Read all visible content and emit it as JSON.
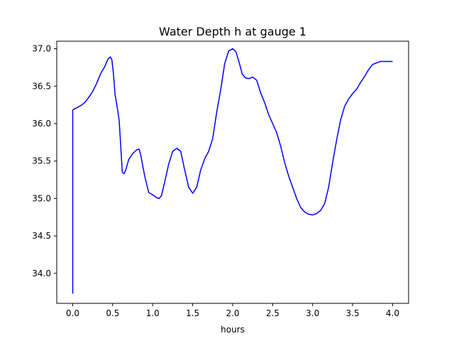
{
  "chart_data": {
    "type": "line",
    "title": "Water Depth h at gauge 1",
    "xlabel": "hours",
    "ylabel": "",
    "xlim": [
      -0.2,
      4.2
    ],
    "ylim": [
      33.6,
      37.1
    ],
    "xticks": [
      0.0,
      0.5,
      1.0,
      1.5,
      2.0,
      2.5,
      3.0,
      3.5,
      4.0
    ],
    "xtick_labels": [
      "0.0",
      "0.5",
      "1.0",
      "1.5",
      "2.0",
      "2.5",
      "3.0",
      "3.5",
      "4.0"
    ],
    "yticks": [
      34.0,
      34.5,
      35.0,
      35.5,
      36.0,
      36.5,
      37.0
    ],
    "ytick_labels": [
      "34.0",
      "34.5",
      "35.0",
      "35.5",
      "36.0",
      "36.5",
      "37.0"
    ],
    "grid": false,
    "line_color": "#0000ff",
    "series": [
      {
        "x": [
          0.0,
          0.0,
          0.01,
          0.05,
          0.1,
          0.15,
          0.2,
          0.25,
          0.3,
          0.35,
          0.4,
          0.44,
          0.47,
          0.49,
          0.51,
          0.53,
          0.55,
          0.58,
          0.6,
          0.62,
          0.64,
          0.66,
          0.7,
          0.75,
          0.8,
          0.83,
          0.85,
          0.9,
          0.95,
          1.0,
          1.05,
          1.08,
          1.11,
          1.15,
          1.2,
          1.25,
          1.3,
          1.35,
          1.4,
          1.45,
          1.5,
          1.55,
          1.6,
          1.65,
          1.7,
          1.75,
          1.8,
          1.85,
          1.9,
          1.95,
          2.0,
          2.04,
          2.08,
          2.12,
          2.16,
          2.2,
          2.25,
          2.3,
          2.35,
          2.4,
          2.45,
          2.5,
          2.55,
          2.6,
          2.65,
          2.7,
          2.75,
          2.8,
          2.85,
          2.9,
          2.95,
          3.0,
          3.05,
          3.1,
          3.15,
          3.2,
          3.25,
          3.3,
          3.35,
          3.4,
          3.45,
          3.5,
          3.55,
          3.6,
          3.65,
          3.7,
          3.75,
          3.8,
          3.85,
          3.9,
          3.95,
          4.0
        ],
        "y": [
          33.73,
          36.18,
          36.19,
          36.21,
          36.24,
          36.28,
          36.35,
          36.43,
          36.54,
          36.67,
          36.76,
          36.86,
          36.89,
          36.85,
          36.65,
          36.38,
          36.26,
          36.05,
          35.7,
          35.35,
          35.33,
          35.37,
          35.52,
          35.6,
          35.65,
          35.66,
          35.58,
          35.3,
          35.08,
          35.05,
          35.01,
          35.0,
          35.04,
          35.22,
          35.46,
          35.63,
          35.67,
          35.63,
          35.38,
          35.15,
          35.07,
          35.15,
          35.38,
          35.53,
          35.63,
          35.8,
          36.15,
          36.45,
          36.8,
          36.97,
          37.0,
          36.96,
          36.82,
          36.66,
          36.61,
          36.6,
          36.62,
          36.58,
          36.41,
          36.28,
          36.12,
          36.0,
          35.88,
          35.7,
          35.48,
          35.3,
          35.15,
          35.0,
          34.88,
          34.82,
          34.79,
          34.78,
          34.8,
          34.84,
          34.93,
          35.15,
          35.48,
          35.78,
          36.05,
          36.23,
          36.33,
          36.4,
          36.46,
          36.55,
          36.63,
          36.72,
          36.79,
          36.81,
          36.83,
          36.83,
          36.83,
          36.83
        ]
      }
    ]
  }
}
